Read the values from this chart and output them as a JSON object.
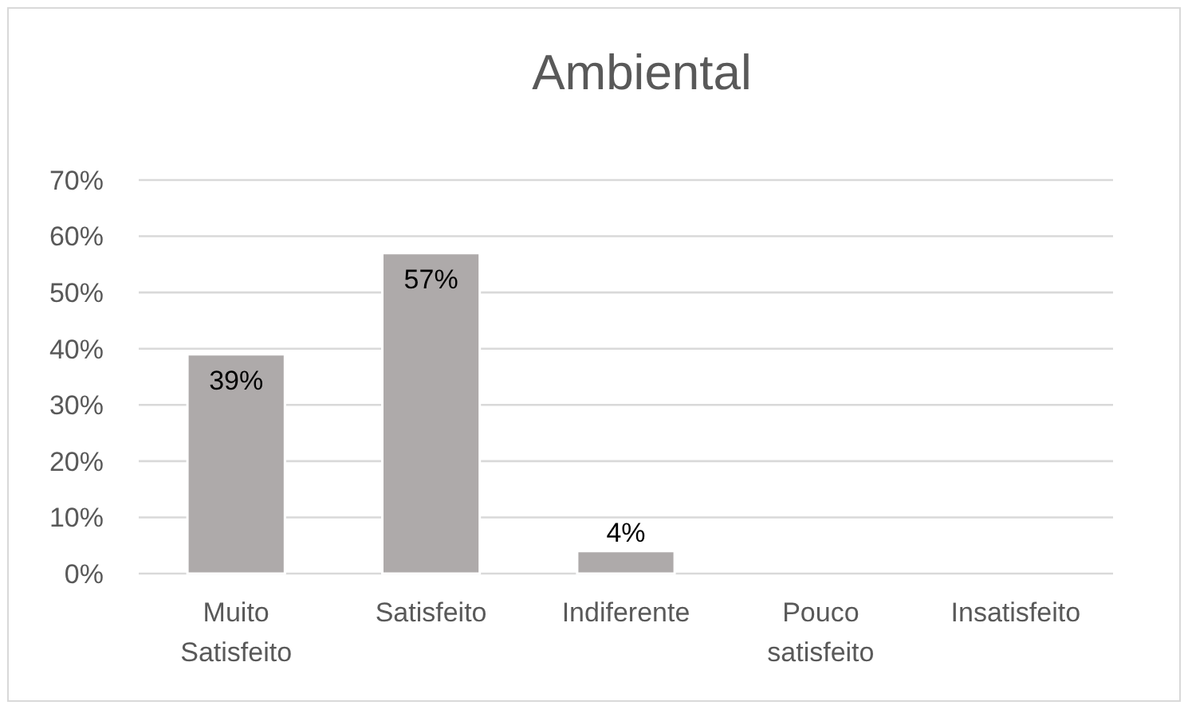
{
  "chart_data": {
    "type": "bar",
    "title": "Ambiental",
    "categories": [
      "Muito Satisfeito",
      "Satisfeito",
      "Indiferente",
      "Pouco satisfeito",
      "Insatisfeito"
    ],
    "values": [
      39,
      57,
      4,
      0,
      0
    ],
    "color": "#aeaaaa",
    "value_labels": [
      "39%",
      "57%",
      "4%",
      null,
      null
    ],
    "ylim": [
      0,
      70
    ],
    "yticks": [
      {
        "value": 0,
        "label": "0%"
      },
      {
        "value": 10,
        "label": "10%"
      },
      {
        "value": 20,
        "label": "20%"
      },
      {
        "value": 30,
        "label": "30%"
      },
      {
        "value": 40,
        "label": "40%"
      },
      {
        "value": 50,
        "label": "50%"
      },
      {
        "value": 60,
        "label": "60%"
      },
      {
        "value": 70,
        "label": "70%"
      }
    ],
    "grid": "y"
  }
}
